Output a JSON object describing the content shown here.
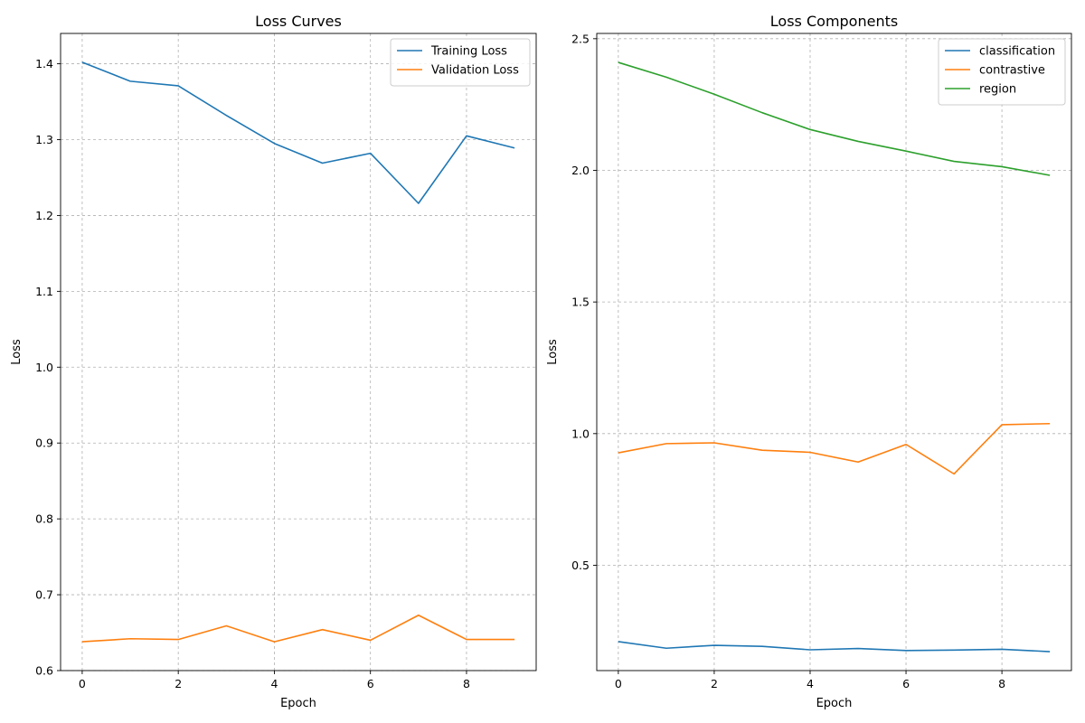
{
  "chart_data": [
    {
      "type": "line",
      "title": "Loss Curves",
      "xlabel": "Epoch",
      "ylabel": "Loss",
      "x": [
        0,
        1,
        2,
        3,
        4,
        5,
        6,
        7,
        8,
        9
      ],
      "xlim": [
        -0.45,
        9.45
      ],
      "ylim": [
        0.6,
        1.44
      ],
      "xticks": [
        0,
        2,
        4,
        6,
        8
      ],
      "yticks": [
        0.6,
        0.7,
        0.8,
        0.9,
        1.0,
        1.1,
        1.2,
        1.3,
        1.4
      ],
      "grid": true,
      "legend_position": "top-right",
      "series": [
        {
          "name": "Training Loss",
          "color": "#1f77b4",
          "values": [
            1.402,
            1.377,
            1.371,
            1.332,
            1.295,
            1.269,
            1.282,
            1.216,
            1.305,
            1.289
          ]
        },
        {
          "name": "Validation Loss",
          "color": "#ff7f0e",
          "values": [
            0.638,
            0.642,
            0.641,
            0.659,
            0.638,
            0.654,
            0.64,
            0.673,
            0.641,
            0.641
          ]
        }
      ]
    },
    {
      "type": "line",
      "title": "Loss Components",
      "xlabel": "Epoch",
      "ylabel": "Loss",
      "x": [
        0,
        1,
        2,
        3,
        4,
        5,
        6,
        7,
        8,
        9
      ],
      "xlim": [
        -0.45,
        9.45
      ],
      "ylim": [
        0.1,
        2.52
      ],
      "xticks": [
        0,
        2,
        4,
        6,
        8
      ],
      "yticks": [
        0.5,
        1.0,
        1.5,
        2.0,
        2.5
      ],
      "grid": true,
      "legend_position": "top-right",
      "series": [
        {
          "name": "classification",
          "color": "#1f77b4",
          "values": [
            0.21,
            0.185,
            0.196,
            0.192,
            0.179,
            0.184,
            0.176,
            0.178,
            0.181,
            0.172
          ]
        },
        {
          "name": "contrastive",
          "color": "#ff7f0e",
          "values": [
            0.927,
            0.962,
            0.965,
            0.937,
            0.929,
            0.892,
            0.959,
            0.847,
            1.034,
            1.038
          ]
        },
        {
          "name": "region",
          "color": "#2ca02c",
          "values": [
            2.41,
            2.354,
            2.289,
            2.219,
            2.155,
            2.11,
            2.073,
            2.034,
            2.014,
            1.981
          ]
        }
      ]
    }
  ]
}
